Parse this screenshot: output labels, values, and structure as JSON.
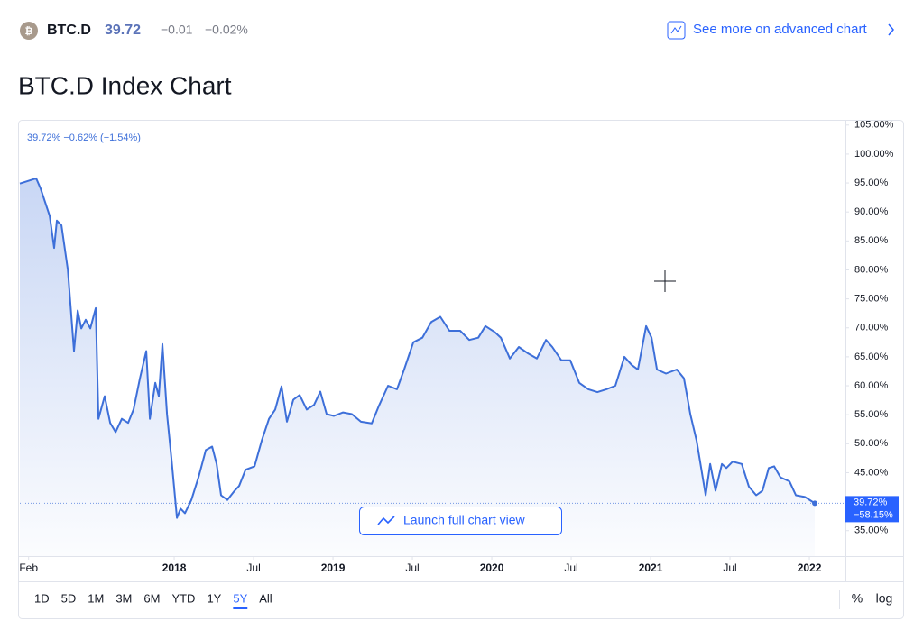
{
  "header": {
    "symbol": "BTC.D",
    "price": "39.72",
    "change": "−0.01",
    "change_percent": "−0.02%",
    "link": "See more on advanced chart"
  },
  "page_title": "BTC.D Index Chart",
  "chart_data": {
    "type": "line",
    "legend_text": "39.72%  −0.62%  (−1.54%)",
    "color": "#3d6fd9",
    "x": [
      2017.028,
      2017.131,
      2017.159,
      2017.216,
      2017.244,
      2017.261,
      2017.29,
      2017.33,
      2017.369,
      2017.392,
      2017.415,
      2017.443,
      2017.472,
      2017.506,
      2017.523,
      2017.562,
      2017.597,
      2017.631,
      2017.67,
      2017.71,
      2017.744,
      2017.784,
      2017.824,
      2017.847,
      2017.881,
      2017.903,
      2017.926,
      2017.955,
      2017.983,
      2018.017,
      2018.04,
      2018.068,
      2018.108,
      2018.153,
      2018.199,
      2018.239,
      2018.267,
      2018.295,
      2018.335,
      2018.381,
      2018.409,
      2018.449,
      2018.506,
      2018.551,
      2018.597,
      2018.636,
      2018.676,
      2018.71,
      2018.75,
      2018.79,
      2018.835,
      2018.881,
      2018.92,
      2018.96,
      2019.006,
      2019.063,
      2019.119,
      2019.176,
      2019.244,
      2019.29,
      2019.347,
      2019.403,
      2019.449,
      2019.506,
      2019.563,
      2019.619,
      2019.676,
      2019.733,
      2019.801,
      2019.858,
      2019.915,
      2019.96,
      2020.017,
      2020.057,
      2020.114,
      2020.17,
      2020.227,
      2020.284,
      2020.341,
      2020.381,
      2020.438,
      2020.494,
      2020.551,
      2020.608,
      2020.665,
      2020.722,
      2020.778,
      2020.835,
      2020.881,
      2020.92,
      2020.972,
      2021.006,
      2021.04,
      2021.097,
      2021.165,
      2021.21,
      2021.25,
      2021.29,
      2021.347,
      2021.375,
      2021.409,
      2021.449,
      2021.477,
      2021.517,
      2021.574,
      2021.619,
      2021.665,
      2021.705,
      2021.744,
      2021.778,
      2021.818,
      2021.875,
      2021.915,
      2021.972,
      2022.034
    ],
    "values": [
      94.9,
      95.8,
      94.0,
      89.3,
      83.8,
      88.5,
      87.7,
      80.0,
      66.0,
      73.0,
      69.9,
      71.4,
      69.9,
      73.4,
      54.3,
      58.2,
      53.6,
      52.0,
      54.3,
      53.6,
      55.9,
      61.3,
      66.0,
      54.3,
      60.5,
      58.2,
      67.2,
      55.1,
      47.3,
      37.2,
      38.8,
      38.0,
      40.3,
      44.2,
      48.9,
      49.5,
      46.5,
      41.1,
      40.3,
      41.9,
      42.7,
      45.5,
      46.1,
      50.5,
      54.3,
      55.9,
      59.9,
      53.8,
      57.6,
      58.4,
      55.9,
      56.7,
      59.0,
      55.1,
      54.8,
      55.4,
      55.1,
      53.8,
      53.5,
      56.6,
      60.0,
      59.4,
      62.9,
      67.5,
      68.3,
      71.0,
      71.9,
      69.5,
      69.5,
      67.9,
      68.3,
      70.3,
      69.3,
      68.3,
      64.7,
      66.7,
      65.6,
      64.7,
      67.9,
      66.7,
      64.4,
      64.4,
      60.5,
      59.4,
      58.9,
      59.4,
      60.0,
      65.0,
      63.6,
      62.8,
      70.3,
      68.3,
      62.8,
      62.1,
      62.8,
      61.3,
      55.1,
      50.5,
      41.1,
      46.5,
      41.9,
      46.5,
      45.8,
      46.9,
      46.5,
      42.6,
      41.1,
      41.9,
      45.8,
      46.1,
      44.2,
      43.5,
      41.1,
      40.8,
      39.72
    ],
    "xlim": [
      2017.028,
      2022.227
    ],
    "xticks": [
      {
        "value": 2017.083,
        "label": "Feb"
      },
      {
        "value": 2018,
        "label": "2018"
      },
      {
        "value": 2018.5,
        "label": "Jul"
      },
      {
        "value": 2019,
        "label": "2019"
      },
      {
        "value": 2019.5,
        "label": "Jul"
      },
      {
        "value": 2020,
        "label": "2020"
      },
      {
        "value": 2020.5,
        "label": "Jul"
      },
      {
        "value": 2021,
        "label": "2021"
      },
      {
        "value": 2021.5,
        "label": "Jul"
      },
      {
        "value": 2022,
        "label": "2022"
      }
    ],
    "ylim": [
      30.6,
      105.9
    ],
    "yticks": [
      {
        "value": 35,
        "label": "35.00%"
      },
      {
        "value": 40,
        "label": "40.00%"
      },
      {
        "value": 45,
        "label": "45.00%"
      },
      {
        "value": 50,
        "label": "50.00%"
      },
      {
        "value": 55,
        "label": "55.00%"
      },
      {
        "value": 60,
        "label": "60.00%"
      },
      {
        "value": 65,
        "label": "65.00%"
      },
      {
        "value": 70,
        "label": "70.00%"
      },
      {
        "value": 75,
        "label": "75.00%"
      },
      {
        "value": 80,
        "label": "80.00%"
      },
      {
        "value": 85,
        "label": "85.00%"
      },
      {
        "value": 90,
        "label": "90.00%"
      },
      {
        "value": 95,
        "label": "95.00%"
      },
      {
        "value": 100,
        "label": "100.00%"
      },
      {
        "value": 105,
        "label": "105.00%"
      }
    ],
    "price_label": {
      "value": "39.72%",
      "change": "−58.15%"
    },
    "launch_button": "Launch full chart view"
  },
  "toolbar": {
    "ranges": [
      "1D",
      "5D",
      "1M",
      "3M",
      "6M",
      "YTD",
      "1Y",
      "5Y",
      "All"
    ],
    "active": "5Y",
    "percent": "%",
    "log": "log"
  }
}
